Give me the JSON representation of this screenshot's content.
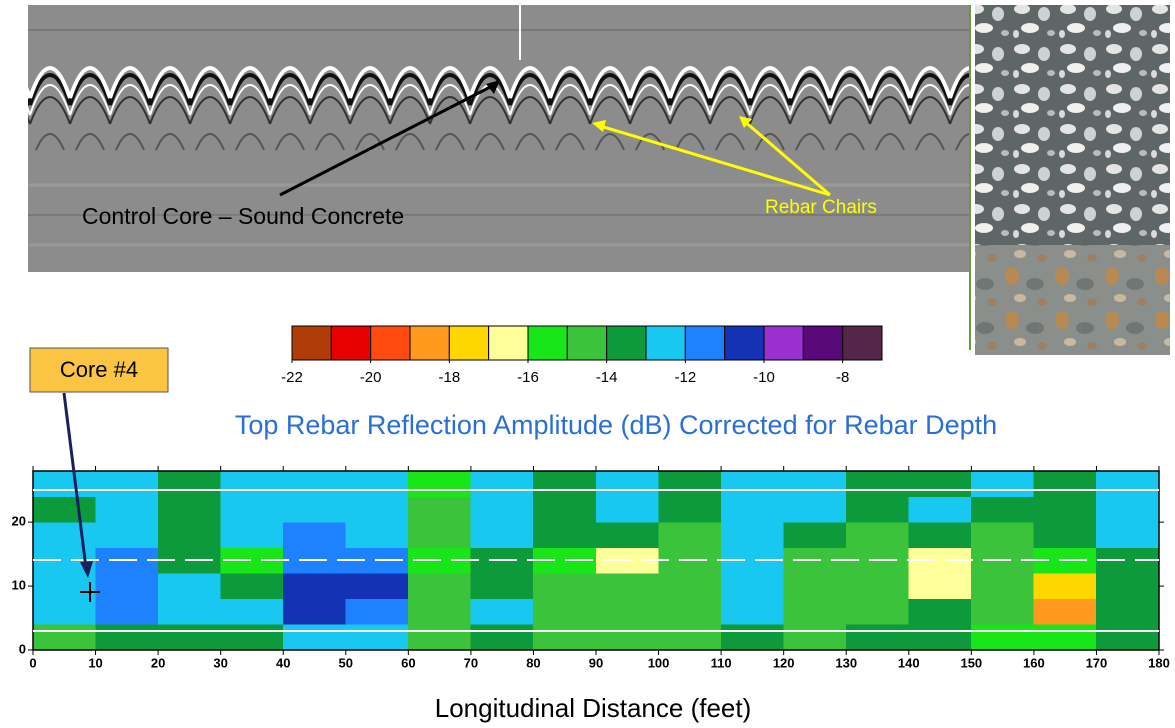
{
  "chart_data": {
    "type": "heatmap",
    "title": "Top Rebar Reflection Amplitude (dB) Corrected for Rebar Depth",
    "x_label": "Longitudinal Distance (feet)",
    "xlim": [
      0,
      180
    ],
    "xticks": [
      0,
      10,
      20,
      30,
      40,
      50,
      60,
      70,
      80,
      90,
      100,
      110,
      120,
      130,
      140,
      150,
      160,
      170,
      180
    ],
    "ylim": [
      0,
      28
    ],
    "yticks": [
      0,
      10,
      20
    ],
    "x_bins": [
      0,
      10,
      20,
      30,
      40,
      50,
      60,
      70,
      80,
      90,
      100,
      110,
      120,
      130,
      140,
      150,
      160,
      170,
      180
    ],
    "y_bins": [
      0,
      4,
      8,
      12,
      16,
      20,
      24,
      28
    ],
    "z": [
      [
        -15,
        -14,
        -14,
        -14,
        -13,
        -13,
        -15,
        -14,
        -15,
        -15,
        -15,
        -14,
        -15,
        -14,
        -14,
        -16,
        -16,
        -14
      ],
      [
        -13,
        -12,
        -13,
        -13,
        -11,
        -12,
        -15,
        -13,
        -15,
        -15,
        -15,
        -13,
        -15,
        -15,
        -14,
        -15,
        -19,
        -14
      ],
      [
        -13,
        -12,
        -13,
        -14,
        -11,
        -11,
        -15,
        -14,
        -15,
        -15,
        -15,
        -13,
        -15,
        -15,
        -17,
        -15,
        -18,
        -14
      ],
      [
        -13,
        -12,
        -14,
        -16,
        -12,
        -12,
        -16,
        -14,
        -16,
        -17,
        -15,
        -13,
        -15,
        -15,
        -17,
        -15,
        -16,
        -14
      ],
      [
        -13,
        -13,
        -14,
        -13,
        -12,
        -13,
        -15,
        -13,
        -14,
        -14,
        -15,
        -13,
        -14,
        -15,
        -14,
        -15,
        -14,
        -13
      ],
      [
        -14,
        -13,
        -14,
        -13,
        -13,
        -13,
        -15,
        -13,
        -14,
        -13,
        -14,
        -13,
        -13,
        -14,
        -13,
        -14,
        -14,
        -13
      ],
      [
        -13,
        -13,
        -14,
        -13,
        -13,
        -13,
        -16,
        -13,
        -14,
        -13,
        -14,
        -13,
        -13,
        -14,
        -14,
        -13,
        -14,
        -13
      ]
    ],
    "colorbar": {
      "colors": [
        "#b03c08",
        "#e60000",
        "#ff4a10",
        "#ff9a1e",
        "#ffd700",
        "#ffff99",
        "#19e619",
        "#3cc33c",
        "#0d9a3a",
        "#19c8f0",
        "#1e82ff",
        "#1432b4",
        "#9b30d0",
        "#5a0a78",
        "#55264a"
      ],
      "zlim": [
        -22,
        -7
      ],
      "ticks": [
        -22,
        -20,
        -18,
        -16,
        -14,
        -12,
        -10,
        -8
      ]
    },
    "annotations": {
      "core_label": "Core #4",
      "control_core": "Control Core – Sound Concrete",
      "rebar_chairs": "Rebar Chairs"
    }
  }
}
